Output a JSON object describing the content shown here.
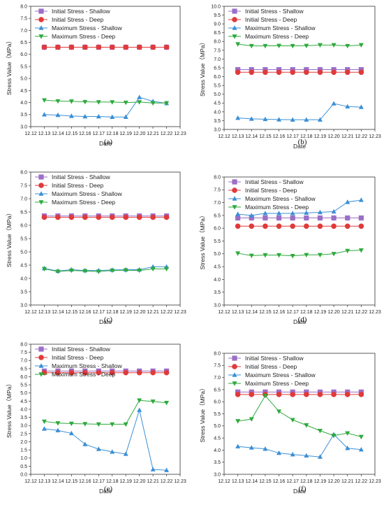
{
  "colors": {
    "initial_shallow": "#9b6fc7",
    "initial_deep": "#e03a3a",
    "max_shallow": "#3b8fd6",
    "max_deep": "#2eaa3c",
    "axis": "#333333"
  },
  "chart_data": [
    {
      "type": "line",
      "panel_label": "(a)",
      "xlabel": "Date",
      "ylabel": "Stress Value（MPa）",
      "categories": [
        "12.13",
        "12.14",
        "12.15",
        "12.16",
        "12.17",
        "12.18",
        "12.19",
        "12.20",
        "12.21",
        "12.22"
      ],
      "x_ticks": [
        "12.12",
        "12.13",
        "12.14",
        "12.15",
        "12.16",
        "12.17",
        "12.18",
        "12.19",
        "12.20",
        "12.21",
        "12.22",
        "12.23"
      ],
      "ylim": [
        3.0,
        8.0
      ],
      "y_ticks": [
        "3.0",
        "3.5",
        "4.0",
        "4.5",
        "5.0",
        "5.5",
        "6.0",
        "6.5",
        "7.0",
        "7.5",
        "8.0"
      ],
      "legend_position": "top-left",
      "series": [
        {
          "name": "Initial Stress - Shallow",
          "marker": "square",
          "values": [
            6.3,
            6.3,
            6.3,
            6.3,
            6.3,
            6.3,
            6.3,
            6.3,
            6.3,
            6.3
          ]
        },
        {
          "name": "Initial Stress - Deep",
          "marker": "circle",
          "values": [
            6.3,
            6.3,
            6.3,
            6.3,
            6.3,
            6.3,
            6.3,
            6.3,
            6.3,
            6.3
          ]
        },
        {
          "name": "Maximum Stress - Shallow",
          "marker": "triangle-up",
          "values": [
            3.5,
            3.48,
            3.44,
            3.42,
            3.42,
            3.4,
            3.4,
            4.22,
            4.05,
            3.97
          ]
        },
        {
          "name": "Maximum Stress - Deep",
          "marker": "triangle-down",
          "values": [
            4.1,
            4.06,
            4.05,
            4.03,
            4.02,
            4.02,
            4.0,
            4.02,
            3.98,
            3.98
          ]
        }
      ]
    },
    {
      "type": "line",
      "panel_label": "(b)",
      "xlabel": "Date",
      "ylabel": "Stress Value（MPa）",
      "categories": [
        "12.13",
        "12.14",
        "12.15",
        "12.16",
        "12.17",
        "12.18",
        "12.19",
        "12.20",
        "12.21",
        "12.22"
      ],
      "x_ticks": [
        "12.12",
        "12.13",
        "12.14",
        "12.15",
        "12.16",
        "12.17",
        "12.18",
        "12.19",
        "12.20",
        "12.21",
        "12.22",
        "12.23"
      ],
      "ylim": [
        3.0,
        10.0
      ],
      "y_ticks": [
        "3.0",
        "3.5",
        "4.0",
        "4.5",
        "5.0",
        "5.5",
        "6.0",
        "6.5",
        "7.0",
        "7.5",
        "8.0",
        "8.5",
        "9.0",
        "9.5",
        "10.0"
      ],
      "legend_position": "top-left",
      "series": [
        {
          "name": "Initial Stress - Shallow",
          "marker": "square",
          "values": [
            6.4,
            6.4,
            6.4,
            6.4,
            6.4,
            6.4,
            6.4,
            6.4,
            6.4,
            6.4
          ]
        },
        {
          "name": "Initial Stress - Deep",
          "marker": "circle",
          "values": [
            6.25,
            6.25,
            6.25,
            6.25,
            6.25,
            6.25,
            6.25,
            6.25,
            6.25,
            6.25
          ]
        },
        {
          "name": "Maximum Stress - Shallow",
          "marker": "triangle-up",
          "values": [
            3.65,
            3.6,
            3.58,
            3.56,
            3.55,
            3.55,
            3.55,
            4.47,
            4.3,
            4.27
          ]
        },
        {
          "name": "Maximum Stress - Deep",
          "marker": "triangle-down",
          "values": [
            7.85,
            7.75,
            7.75,
            7.76,
            7.75,
            7.76,
            7.8,
            7.8,
            7.75,
            7.8
          ]
        }
      ]
    },
    {
      "type": "line",
      "panel_label": "(c)",
      "xlabel": "Date",
      "ylabel": "Stress Value（MPa）",
      "categories": [
        "12.13",
        "12.14",
        "12.15",
        "12.16",
        "12.17",
        "12.18",
        "12.19",
        "12.20",
        "12.21",
        "12.22"
      ],
      "x_ticks": [
        "12.12",
        "12.13",
        "12.14",
        "12.15",
        "12.16",
        "12.17",
        "12.18",
        "12.19",
        "12.20",
        "12.21",
        "12.22",
        "12.23"
      ],
      "ylim": [
        3.0,
        8.0
      ],
      "y_ticks": [
        "3.0",
        "3.5",
        "4.0",
        "4.5",
        "5.0",
        "5.5",
        "6.0",
        "6.5",
        "7.0",
        "7.5",
        "8.0"
      ],
      "legend_position": "top-left",
      "series": [
        {
          "name": "Initial Stress - Shallow",
          "marker": "square",
          "values": [
            6.35,
            6.35,
            6.35,
            6.35,
            6.35,
            6.35,
            6.35,
            6.35,
            6.35,
            6.35
          ]
        },
        {
          "name": "Initial Stress - Deep",
          "marker": "circle",
          "values": [
            6.3,
            6.3,
            6.3,
            6.3,
            6.3,
            6.3,
            6.3,
            6.3,
            6.3,
            6.3
          ]
        },
        {
          "name": "Maximum Stress - Shallow",
          "marker": "triangle-up",
          "values": [
            4.38,
            4.28,
            4.33,
            4.3,
            4.3,
            4.32,
            4.33,
            4.33,
            4.44,
            4.44
          ]
        },
        {
          "name": "Maximum Stress - Deep",
          "marker": "triangle-down",
          "values": [
            4.36,
            4.26,
            4.3,
            4.28,
            4.26,
            4.3,
            4.31,
            4.3,
            4.36,
            4.36
          ]
        }
      ]
    },
    {
      "type": "line",
      "panel_label": "(d)",
      "xlabel": "Date",
      "ylabel": "Stress Value（MPa）",
      "categories": [
        "12.13",
        "12.14",
        "12.15",
        "12.16",
        "12.17",
        "12.18",
        "12.19",
        "12.20",
        "12.21",
        "12.22"
      ],
      "x_ticks": [
        "12.12",
        "12.13",
        "12.14",
        "12.15",
        "12.16",
        "12.17",
        "12.18",
        "12.19",
        "12.20",
        "12.21",
        "12.22",
        "12.23"
      ],
      "ylim": [
        3.0,
        8.0
      ],
      "y_ticks": [
        "3.0",
        "3.5",
        "4.0",
        "4.5",
        "5.0",
        "5.5",
        "6.0",
        "6.5",
        "7.0",
        "7.5",
        "8.0"
      ],
      "legend_position": "top-left",
      "series": [
        {
          "name": "Initial Stress - Shallow",
          "marker": "square",
          "values": [
            6.4,
            6.4,
            6.4,
            6.4,
            6.4,
            6.4,
            6.4,
            6.4,
            6.4,
            6.4
          ]
        },
        {
          "name": "Initial Stress - Deep",
          "marker": "circle",
          "values": [
            6.08,
            6.08,
            6.08,
            6.08,
            6.08,
            6.08,
            6.08,
            6.08,
            6.08,
            6.08
          ]
        },
        {
          "name": "Maximum Stress - Shallow",
          "marker": "triangle-up",
          "values": [
            6.55,
            6.5,
            6.58,
            6.58,
            6.58,
            6.6,
            6.62,
            6.65,
            7.02,
            7.1
          ]
        },
        {
          "name": "Maximum Stress - Deep",
          "marker": "triangle-down",
          "values": [
            5.02,
            4.93,
            4.95,
            4.95,
            4.92,
            4.96,
            4.96,
            5.0,
            5.12,
            5.14
          ]
        }
      ]
    },
    {
      "type": "line",
      "panel_label": "(e)",
      "xlabel": "Date",
      "ylabel": "Stress Value（MPa）",
      "categories": [
        "12.13",
        "12.14",
        "12.15",
        "12.16",
        "12.17",
        "12.18",
        "12.19",
        "12.20",
        "12.21",
        "12.22"
      ],
      "x_ticks": [
        "12.12",
        "12.13",
        "12.14",
        "12.15",
        "12.16",
        "12.17",
        "12.18",
        "12.19",
        "12.20",
        "12.21",
        "12.22",
        "12.23"
      ],
      "ylim": [
        0.0,
        8.0
      ],
      "y_ticks": [
        "0.0",
        "0.5",
        "1.0",
        "1.5",
        "2.0",
        "2.5",
        "3.0",
        "3.5",
        "4.0",
        "4.5",
        "5.0",
        "5.5",
        "6.0",
        "6.5",
        "7.0",
        "7.5",
        "8.0"
      ],
      "legend_position": "top-left",
      "series": [
        {
          "name": "Initial Stress - Shallow",
          "marker": "square",
          "values": [
            6.35,
            6.35,
            6.35,
            6.35,
            6.35,
            6.35,
            6.35,
            6.35,
            6.35,
            6.35
          ]
        },
        {
          "name": "Initial Stress - Deep",
          "marker": "circle",
          "values": [
            6.25,
            6.25,
            6.25,
            6.25,
            6.25,
            6.25,
            6.25,
            6.25,
            6.25,
            6.25
          ]
        },
        {
          "name": "Maximum Stress - Shallow",
          "marker": "triangle-up",
          "values": [
            2.8,
            2.7,
            2.52,
            1.85,
            1.55,
            1.38,
            1.25,
            3.95,
            0.3,
            0.25
          ]
        },
        {
          "name": "Maximum Stress - Deep",
          "marker": "triangle-down",
          "values": [
            3.25,
            3.15,
            3.12,
            3.1,
            3.08,
            3.08,
            3.08,
            4.55,
            4.48,
            4.4
          ]
        }
      ]
    },
    {
      "type": "line",
      "panel_label": "(f)",
      "xlabel": "Date",
      "ylabel": "Stress Value（MPa）",
      "categories": [
        "12.13",
        "12.14",
        "12.15",
        "12.16",
        "12.17",
        "12.18",
        "12.19",
        "12.20",
        "12.21",
        "12.22"
      ],
      "x_ticks": [
        "12.12",
        "12.13",
        "12.14",
        "12.15",
        "12.16",
        "12.17",
        "12.18",
        "12.19",
        "12.20",
        "12.21",
        "12.22",
        "12.23"
      ],
      "ylim": [
        3.0,
        8.0
      ],
      "y_ticks": [
        "3.0",
        "3.5",
        "4.0",
        "4.5",
        "5.0",
        "5.5",
        "6.0",
        "6.5",
        "7.0",
        "7.5",
        "8.0"
      ],
      "legend_position": "top-left",
      "series": [
        {
          "name": "Initial Stress - Shallow",
          "marker": "square",
          "values": [
            6.4,
            6.4,
            6.4,
            6.4,
            6.4,
            6.4,
            6.4,
            6.4,
            6.4,
            6.4
          ]
        },
        {
          "name": "Initial Stress - Deep",
          "marker": "circle",
          "values": [
            6.3,
            6.3,
            6.3,
            6.3,
            6.3,
            6.3,
            6.3,
            6.3,
            6.3,
            6.3
          ]
        },
        {
          "name": "Maximum Stress - Shallow",
          "marker": "triangle-up",
          "values": [
            4.15,
            4.1,
            4.05,
            3.88,
            3.82,
            3.77,
            3.72,
            4.65,
            4.08,
            4.02
          ]
        },
        {
          "name": "Maximum Stress - Deep",
          "marker": "triangle-down",
          "values": [
            5.2,
            5.28,
            6.25,
            5.6,
            5.25,
            5.03,
            4.8,
            4.6,
            4.7,
            4.55
          ]
        }
      ]
    }
  ]
}
